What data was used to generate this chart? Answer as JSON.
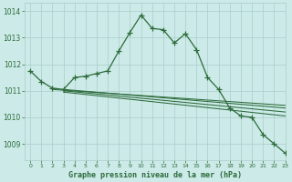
{
  "title": "Graphe pression niveau de la mer (hPa)",
  "background_color": "#cceae7",
  "grid_color": "#aacccc",
  "line_color": "#2d6b3c",
  "xlim": [
    -0.5,
    23
  ],
  "ylim": [
    1008.4,
    1014.3
  ],
  "xticks": [
    0,
    1,
    2,
    3,
    4,
    5,
    6,
    7,
    8,
    9,
    10,
    11,
    12,
    13,
    14,
    15,
    16,
    17,
    18,
    19,
    20,
    21,
    22,
    23
  ],
  "yticks": [
    1009,
    1010,
    1011,
    1012,
    1013,
    1014
  ],
  "main_series": {
    "x": [
      0,
      1,
      2,
      3,
      4,
      5,
      6,
      7,
      8,
      9,
      10,
      11,
      12,
      13,
      14,
      15,
      16,
      17,
      18,
      19,
      20,
      21,
      22,
      23
    ],
    "y": [
      1011.75,
      1011.35,
      1011.1,
      1011.05,
      1011.5,
      1011.55,
      1011.65,
      1011.75,
      1012.5,
      1013.2,
      1013.85,
      1013.35,
      1013.3,
      1012.8,
      1013.15,
      1012.55,
      1011.5,
      1011.05,
      1010.35,
      1010.05,
      1010.0,
      1009.35,
      1009.0,
      1008.65
    ]
  },
  "flat_lines": [
    {
      "x": [
        2,
        23
      ],
      "y": [
        1011.05,
        1010.45
      ]
    },
    {
      "x": [
        3,
        23
      ],
      "y": [
        1011.05,
        1010.35
      ]
    },
    {
      "x": [
        3,
        23
      ],
      "y": [
        1011.0,
        1010.2
      ]
    },
    {
      "x": [
        3,
        23
      ],
      "y": [
        1010.95,
        1010.05
      ]
    }
  ]
}
